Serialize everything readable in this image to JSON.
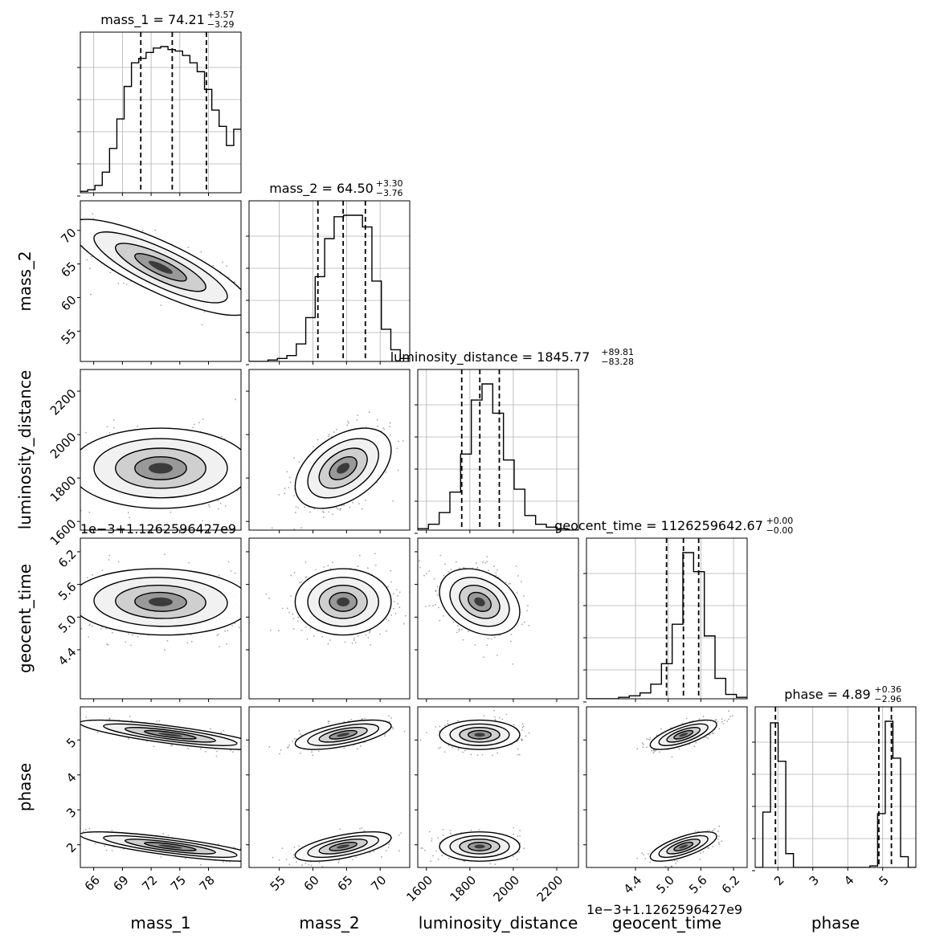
{
  "chart_data": {
    "type": "corner",
    "parameters": [
      "mass_1",
      "mass_2",
      "luminosity_distance",
      "geocent_time",
      "phase"
    ],
    "titles": [
      {
        "param": "mass_1",
        "text": "mass_1 = 74.21",
        "sup": "+3.57",
        "sub": "−3.29"
      },
      {
        "param": "mass_2",
        "text": "mass_2 = 64.50",
        "sup": "+3.30",
        "sub": "−3.76"
      },
      {
        "param": "luminosity_distance",
        "text": "luminosity_distance = 1845.77",
        "sup": "+89.81",
        "sub": "−83.28"
      },
      {
        "param": "geocent_time",
        "text": "geocent_time = 1126259642.67",
        "sup": "+0.00",
        "sub": "−0.00"
      },
      {
        "param": "phase",
        "text": "phase = 4.89",
        "sup": "+0.36",
        "sub": "−2.96"
      }
    ],
    "axis_labels": [
      "mass_1",
      "mass_2",
      "luminosity_distance",
      "geocent_time",
      "phase"
    ],
    "geocent_offset_label": "1e−3+1.1262596427e9",
    "ranges": [
      [
        64.6,
        81.4
      ],
      [
        50.5,
        74.4
      ],
      [
        1560,
        2300
      ],
      [
        3.5,
        6.45
      ],
      [
        1.35,
        5.95
      ]
    ],
    "ticks": [
      [
        "66",
        "69",
        "72",
        "75",
        "78"
      ],
      [
        "55",
        "60",
        "65",
        "70"
      ],
      [
        "1600",
        "1800",
        "2000",
        "2200"
      ],
      [
        "4.4",
        "5.0",
        "5.6",
        "6.2"
      ],
      [
        "2",
        "3",
        "4",
        "5"
      ]
    ],
    "tick_values": [
      [
        66,
        69,
        72,
        75,
        78
      ],
      [
        55,
        60,
        65,
        70
      ],
      [
        1600,
        1800,
        2000,
        2200
      ],
      [
        4.4,
        5.0,
        5.6,
        6.2
      ],
      [
        2,
        3,
        4,
        5
      ]
    ],
    "quantiles": [
      [
        70.92,
        74.21,
        77.78
      ],
      [
        60.74,
        64.5,
        67.8
      ],
      [
        1762.49,
        1845.77,
        1935.58
      ],
      [
        4.97,
        5.28,
        5.56
      ],
      [
        1.93,
        4.89,
        5.25
      ]
    ],
    "histograms": [
      {
        "edges": [
          64.6,
          81.4
        ],
        "counts": [
          1,
          2,
          5,
          14,
          30,
          50,
          72,
          88,
          91,
          95,
          98,
          99,
          97,
          96,
          93,
          88,
          82,
          70,
          56,
          45,
          32,
          43
        ]
      },
      {
        "edges": [
          50.5,
          74.4
        ],
        "counts": [
          0,
          0,
          1,
          2,
          4,
          12,
          30,
          58,
          84,
          99,
          100,
          100,
          92,
          55,
          22,
          8,
          2
        ]
      },
      {
        "edges": [
          1560,
          2300
        ],
        "counts": [
          1,
          4,
          12,
          26,
          52,
          89,
          100,
          80,
          48,
          28,
          10,
          4,
          2,
          1,
          0
        ]
      },
      {
        "edges": [
          3.5,
          6.45
        ],
        "counts": [
          0,
          0,
          0,
          1,
          2,
          4,
          10,
          24,
          51,
          100,
          87,
          43,
          14,
          3,
          1
        ]
      },
      {
        "edges": [
          1.35,
          5.95
        ],
        "counts": [
          0,
          36,
          94,
          69,
          9,
          0,
          0,
          0,
          0,
          0,
          0,
          0,
          0,
          0,
          0,
          1,
          35,
          95,
          71,
          7,
          0
        ]
      }
    ],
    "pairs": [
      {
        "x": "mass_1",
        "y": "mass_2",
        "mean": [
          73.0,
          64.5
        ],
        "sd": [
          4.5,
          3.4
        ],
        "rho": -0.82
      },
      {
        "x": "mass_1",
        "y": "luminosity_distance",
        "mean": [
          73.0,
          1845
        ],
        "sd": [
          4.5,
          88
        ],
        "rho": 0.0
      },
      {
        "x": "mass_2",
        "y": "luminosity_distance",
        "mean": [
          64.5,
          1845
        ],
        "sd": [
          3.4,
          88
        ],
        "rho": 0.45
      },
      {
        "x": "mass_1",
        "y": "geocent_time",
        "mean": [
          73.0,
          5.28
        ],
        "sd": [
          4.5,
          0.29
        ],
        "rho": -0.05
      },
      {
        "x": "mass_2",
        "y": "geocent_time",
        "mean": [
          64.5,
          5.28
        ],
        "sd": [
          3.4,
          0.29
        ],
        "rho": 0.0
      },
      {
        "x": "luminosity_distance",
        "y": "geocent_time",
        "mean": [
          1845,
          5.28
        ],
        "sd": [
          88,
          0.29
        ],
        "rho": -0.3
      },
      {
        "x": "mass_1",
        "y": "phase",
        "modes": [
          {
            "mean": [
              74,
              5.15
            ],
            "sd": [
              4.5,
              0.2
            ],
            "rho": -0.8
          },
          {
            "mean": [
              74,
              1.95
            ],
            "sd": [
              4.5,
              0.2
            ],
            "rho": -0.8
          }
        ]
      },
      {
        "x": "mass_2",
        "y": "phase",
        "modes": [
          {
            "mean": [
              64.5,
              5.15
            ],
            "sd": [
              3.4,
              0.2
            ],
            "rho": 0.6
          },
          {
            "mean": [
              64.5,
              1.95
            ],
            "sd": [
              3.4,
              0.2
            ],
            "rho": 0.6
          }
        ]
      },
      {
        "x": "luminosity_distance",
        "y": "phase",
        "modes": [
          {
            "mean": [
              1845,
              5.15
            ],
            "sd": [
              88,
              0.2
            ],
            "rho": 0.0
          },
          {
            "mean": [
              1845,
              1.95
            ],
            "sd": [
              88,
              0.2
            ],
            "rho": 0.0
          }
        ]
      },
      {
        "x": "geocent_time",
        "y": "phase",
        "modes": [
          {
            "mean": [
              5.28,
              5.15
            ],
            "sd": [
              0.29,
              0.2
            ],
            "rho": 0.7
          },
          {
            "mean": [
              5.28,
              1.95
            ],
            "sd": [
              0.29,
              0.2
            ],
            "rho": 0.7
          }
        ]
      }
    ],
    "grid": true,
    "density_colormap": "greys",
    "contour_levels_sigma": [
      0.5,
      1.0,
      1.5,
      2.0
    ]
  }
}
